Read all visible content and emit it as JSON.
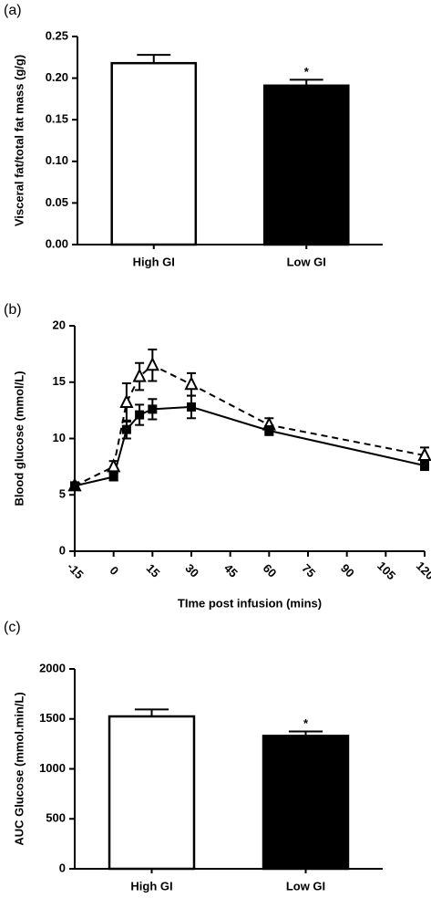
{
  "chart_data": [
    {
      "type": "bar",
      "panel_label": "(a)",
      "y_label": "Visceral fat/total fat mass (g/g)",
      "categories": [
        "High GI",
        "Low GI"
      ],
      "values": [
        0.218,
        0.191
      ],
      "errors": [
        0.01,
        0.007
      ],
      "colors": [
        "#ffffff",
        "#000000"
      ],
      "annotation": "*",
      "ylim": [
        0,
        0.25
      ],
      "yticks": [
        {
          "value": 0,
          "label": "0.00"
        },
        {
          "value": 0.05,
          "label": "0.05"
        },
        {
          "value": 0.1,
          "label": "0.10"
        },
        {
          "value": 0.15,
          "label": "0.15"
        },
        {
          "value": 0.2,
          "label": "0.20"
        },
        {
          "value": 0.25,
          "label": "0.25"
        }
      ]
    },
    {
      "type": "line",
      "panel_label": "(b)",
      "y_label": "Blood glucose (mmol/L)",
      "x_label": "TIme post infusion (mins)",
      "x": [
        -15,
        0,
        5,
        10,
        15,
        30,
        60,
        120
      ],
      "series": [
        {
          "marker": "triangle",
          "dash": true,
          "color": "#000000",
          "values": [
            5.8,
            7.5,
            13.2,
            15.5,
            16.5,
            14.8,
            11.2,
            8.5
          ],
          "errors": [
            0.3,
            0.5,
            1.7,
            1.2,
            1.4,
            1.0,
            0.6,
            0.7
          ]
        },
        {
          "marker": "square",
          "dash": false,
          "color": "#000000",
          "values": [
            5.8,
            6.6,
            10.8,
            12.1,
            12.6,
            12.8,
            10.7,
            7.6
          ],
          "errors": [
            0.3,
            0.3,
            0.8,
            0.9,
            0.9,
            1.0,
            0.4,
            0.4
          ]
        }
      ],
      "xlim": [
        -15,
        120
      ],
      "xticks": [
        -15,
        0,
        15,
        30,
        45,
        60,
        75,
        90,
        105,
        120
      ],
      "ylim": [
        0,
        20
      ],
      "yticks": [
        0,
        5,
        10,
        15,
        20
      ]
    },
    {
      "type": "bar",
      "panel_label": "(c)",
      "y_label": "AUC Glucose (mmol.min/L)",
      "categories": [
        "High GI",
        "Low GI"
      ],
      "values": [
        1525,
        1330
      ],
      "errors": [
        70,
        45
      ],
      "colors": [
        "#ffffff",
        "#000000"
      ],
      "annotation": "*",
      "ylim": [
        0,
        2000
      ],
      "yticks": [
        0,
        500,
        1000,
        1500,
        2000
      ]
    }
  ]
}
